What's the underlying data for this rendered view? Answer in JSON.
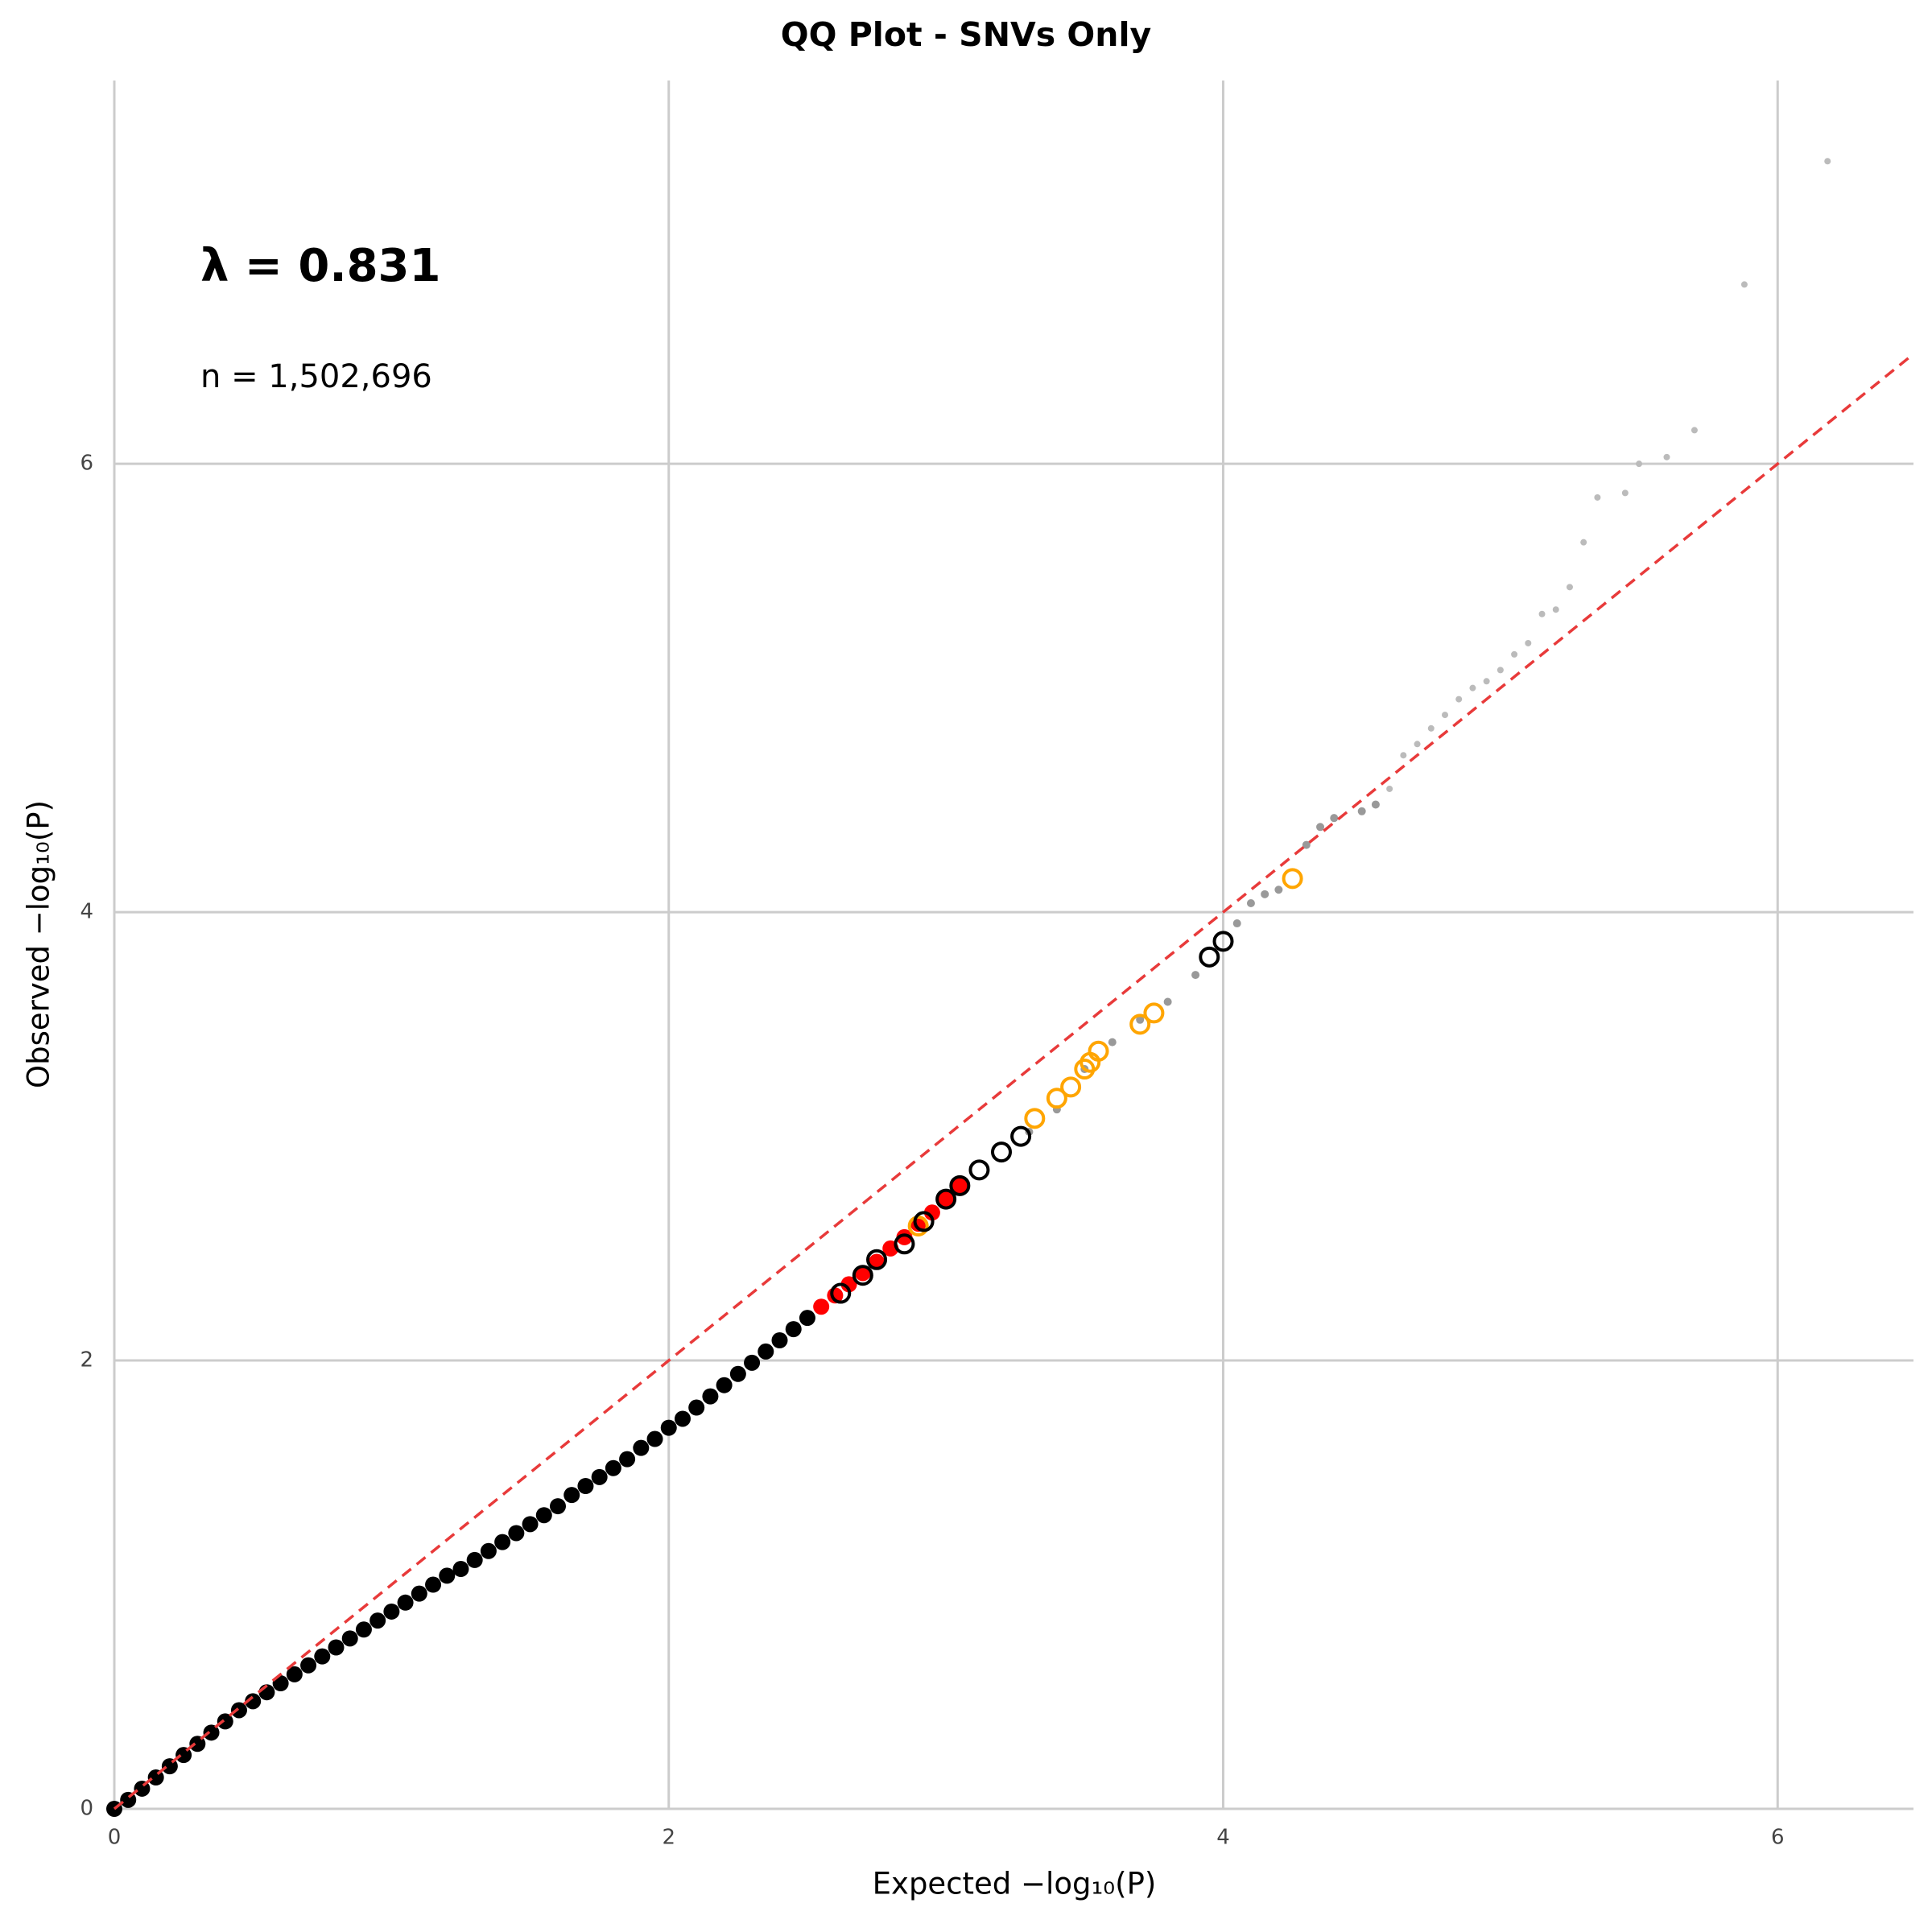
{
  "chart_data": {
    "type": "scatter",
    "title": "QQ Plot - SNVs Only",
    "x_label": "Expected −log₁₀(P)",
    "y_label": "Observed −log₁₀(P)",
    "annotations": [
      "λ = 0.831",
      "n = 1,502,696"
    ],
    "xlim": [
      0,
      6.49
    ],
    "ylim": [
      0,
      7.71
    ],
    "xticks": [
      0,
      2,
      4,
      6
    ],
    "yticks": [
      0,
      2,
      4,
      6
    ],
    "grid": true,
    "reference_line": {
      "slope": 1,
      "intercept": 0,
      "color": "#e83a3a",
      "dashed": true
    },
    "series": [
      {
        "color": "#000000",
        "marker": "filled",
        "size": 10,
        "x": [
          0,
          0.05,
          0.1,
          0.15,
          0.2,
          0.25,
          0.3,
          0.35,
          0.4,
          0.45,
          0.5,
          0.55,
          0.6,
          0.65,
          0.7,
          0.75,
          0.8,
          0.85,
          0.9,
          0.95,
          1.0,
          1.05,
          1.1,
          1.15,
          1.2,
          1.25,
          1.3,
          1.35,
          1.4,
          1.45,
          1.5,
          1.55,
          1.6,
          1.65,
          1.7,
          1.75,
          1.8,
          1.85,
          1.9,
          1.95,
          2.0,
          2.05,
          2.1,
          2.15,
          2.2,
          2.25,
          2.3,
          2.35,
          2.4,
          2.45,
          2.5
        ],
        "values": [
          0,
          0.04,
          0.09,
          0.14,
          0.19,
          0.24,
          0.29,
          0.34,
          0.39,
          0.44,
          0.48,
          0.52,
          0.56,
          0.6,
          0.64,
          0.68,
          0.72,
          0.76,
          0.8,
          0.84,
          0.88,
          0.92,
          0.96,
          1.0,
          1.04,
          1.07,
          1.11,
          1.15,
          1.19,
          1.23,
          1.27,
          1.31,
          1.35,
          1.4,
          1.44,
          1.48,
          1.52,
          1.56,
          1.61,
          1.65,
          1.7,
          1.74,
          1.79,
          1.84,
          1.89,
          1.94,
          1.99,
          2.04,
          2.09,
          2.14,
          2.19
        ]
      },
      {
        "color": "#ff0000",
        "marker": "filled",
        "size": 10,
        "x": [
          2.55,
          2.6,
          2.65,
          2.7,
          2.75,
          2.8,
          2.85,
          2.9,
          2.95,
          3.0,
          3.05
        ],
        "values": [
          2.24,
          2.29,
          2.34,
          2.39,
          2.44,
          2.5,
          2.55,
          2.61,
          2.66,
          2.72,
          2.78
        ]
      },
      {
        "color": "#999999",
        "marker": "filled",
        "size": 5,
        "x": [
          3.3,
          3.4,
          3.5,
          3.6,
          3.7,
          3.8,
          3.9,
          4.05,
          4.1,
          4.15,
          4.2,
          4.3,
          4.35,
          4.4,
          4.5,
          4.55
        ],
        "values": [
          3.02,
          3.12,
          3.3,
          3.42,
          3.52,
          3.6,
          3.72,
          3.95,
          4.04,
          4.08,
          4.1,
          4.3,
          4.38,
          4.42,
          4.45,
          4.48
        ]
      },
      {
        "color": "#bbbbbb",
        "marker": "filled",
        "size": 4,
        "x": [
          4.6,
          4.65,
          4.7,
          4.75,
          4.8,
          4.85,
          4.9,
          4.95,
          5.0,
          5.05,
          5.1,
          5.15,
          5.2,
          5.25,
          5.3,
          5.35,
          5.45,
          5.5,
          5.6,
          5.7,
          5.88,
          6.18
        ],
        "values": [
          4.55,
          4.7,
          4.75,
          4.82,
          4.88,
          4.95,
          5.0,
          5.03,
          5.08,
          5.15,
          5.2,
          5.33,
          5.35,
          5.45,
          5.65,
          5.85,
          5.87,
          6.0,
          6.03,
          6.15,
          6.8,
          7.35
        ]
      },
      {
        "color": "#ffa500",
        "marker": "open",
        "size": 11,
        "x": [
          2.9,
          3.32,
          3.4,
          3.45,
          3.5,
          3.52,
          3.55,
          3.7,
          3.75,
          4.25
        ],
        "values": [
          2.6,
          3.08,
          3.17,
          3.22,
          3.3,
          3.33,
          3.38,
          3.5,
          3.55,
          4.15
        ]
      },
      {
        "color": "#000000",
        "marker": "open",
        "size": 11,
        "x": [
          2.62,
          2.7,
          2.75,
          2.85,
          2.92,
          3.0,
          3.05,
          3.12,
          3.2,
          3.27,
          3.95,
          4.0
        ],
        "values": [
          2.3,
          2.38,
          2.45,
          2.52,
          2.62,
          2.72,
          2.78,
          2.85,
          2.93,
          3.0,
          3.8,
          3.87
        ]
      }
    ]
  }
}
